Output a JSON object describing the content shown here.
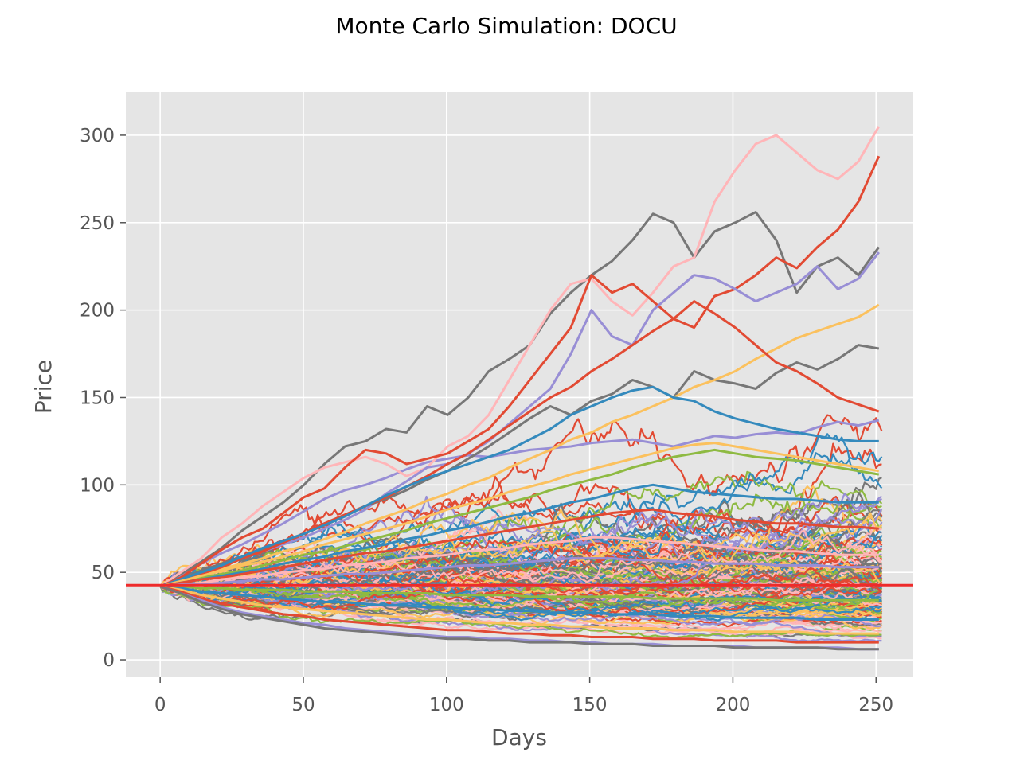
{
  "chart_data": {
    "type": "line",
    "title": "Monte Carlo Simulation: DOCU",
    "xlabel": "Days",
    "ylabel": "Price",
    "xlim": [
      -12,
      263
    ],
    "ylim": [
      -10,
      325
    ],
    "xticks": [
      0,
      50,
      100,
      150,
      200,
      250
    ],
    "yticks": [
      0,
      50,
      100,
      150,
      200,
      250,
      300
    ],
    "grid": true,
    "legend": "none",
    "reference_line": {
      "y": 42.7,
      "color": "#ee2b2b"
    },
    "palette": [
      "#e24a33",
      "#348abd",
      "#988ed5",
      "#777777",
      "#fbc15e",
      "#8eba42",
      "#ffb5b8"
    ],
    "series": [
      {
        "values": [
          42,
          48,
          55,
          61,
          66,
          72,
          78,
          85,
          92,
          97,
          100,
          104,
          109,
          113,
          115,
          117,
          116,
          118,
          120,
          121,
          122,
          124,
          125,
          126,
          124,
          122,
          125,
          128,
          127,
          129,
          130,
          129,
          133,
          136,
          134,
          137
        ],
        "color": "#988ed5"
      },
      {
        "values": [
          42,
          49,
          56,
          64,
          74,
          82,
          90,
          100,
          112,
          122,
          125,
          132,
          130,
          145,
          140,
          150,
          165,
          172,
          180,
          198,
          210,
          220,
          228,
          240,
          255,
          250,
          230,
          245,
          250,
          256,
          240,
          210,
          225,
          230,
          220,
          236
        ],
        "color": "#777777"
      },
      {
        "values": [
          42,
          50,
          58,
          70,
          78,
          88,
          96,
          104,
          110,
          113,
          116,
          112,
          105,
          110,
          122,
          128,
          140,
          160,
          180,
          200,
          215,
          218,
          205,
          197,
          210,
          225,
          230,
          262,
          280,
          295,
          300,
          290,
          280,
          275,
          285,
          305
        ],
        "color": "#ffb5b8"
      },
      {
        "values": [
          42,
          47,
          55,
          63,
          70,
          75,
          84,
          93,
          98,
          110,
          120,
          118,
          112,
          115,
          118,
          125,
          132,
          145,
          160,
          175,
          190,
          220,
          210,
          215,
          205,
          195,
          190,
          208,
          212,
          220,
          230,
          224,
          236,
          246,
          262,
          288
        ],
        "color": "#e24a33"
      },
      {
        "values": [
          42,
          46,
          50,
          55,
          58,
          62,
          66,
          70,
          75,
          80,
          86,
          95,
          102,
          110,
          112,
          118,
          125,
          135,
          145,
          155,
          175,
          200,
          185,
          180,
          200,
          210,
          220,
          218,
          212,
          205,
          210,
          215,
          225,
          212,
          218,
          233
        ],
        "color": "#988ed5"
      },
      {
        "values": [
          42,
          46,
          51,
          55,
          59,
          63,
          68,
          72,
          78,
          83,
          88,
          92,
          97,
          103,
          108,
          115,
          122,
          130,
          138,
          145,
          140,
          148,
          152,
          160,
          156,
          150,
          165,
          160,
          158,
          155,
          164,
          170,
          166,
          172,
          180,
          178
        ],
        "color": "#777777"
      },
      {
        "values": [
          42,
          45,
          49,
          52,
          55,
          58,
          62,
          65,
          69,
          73,
          78,
          82,
          86,
          91,
          95,
          100,
          104,
          110,
          115,
          120,
          126,
          130,
          136,
          140,
          145,
          150,
          156,
          160,
          165,
          172,
          178,
          184,
          188,
          192,
          196,
          203
        ],
        "color": "#fbc15e"
      },
      {
        "values": [
          42,
          45,
          49,
          53,
          58,
          62,
          67,
          72,
          78,
          83,
          88,
          93,
          99,
          105,
          112,
          118,
          126,
          134,
          142,
          150,
          156,
          165,
          172,
          180,
          188,
          195,
          205,
          198,
          190,
          180,
          170,
          165,
          158,
          150,
          146,
          142
        ],
        "color": "#e24a33"
      },
      {
        "values": [
          42,
          46,
          50,
          54,
          59,
          64,
          68,
          72,
          77,
          82,
          88,
          94,
          99,
          104,
          108,
          112,
          116,
          120,
          126,
          132,
          140,
          145,
          150,
          154,
          156,
          150,
          148,
          142,
          138,
          135,
          132,
          130,
          128,
          126,
          125,
          125
        ],
        "color": "#348abd"
      },
      {
        "values": [
          42,
          44,
          47,
          49,
          51,
          54,
          57,
          60,
          62,
          65,
          68,
          71,
          74,
          78,
          81,
          84,
          87,
          90,
          93,
          97,
          100,
          103,
          106,
          110,
          113,
          116,
          118,
          120,
          118,
          116,
          115,
          114,
          112,
          110,
          108,
          106
        ],
        "color": "#8eba42"
      },
      {
        "values": [
          42,
          45,
          48,
          51,
          54,
          56,
          59,
          62,
          66,
          69,
          72,
          75,
          78,
          82,
          86,
          89,
          92,
          96,
          99,
          102,
          106,
          109,
          112,
          115,
          118,
          121,
          123,
          124,
          122,
          120,
          118,
          116,
          114,
          112,
          110,
          108
        ],
        "color": "#fbc15e"
      },
      {
        "values": [
          42,
          44,
          46,
          48,
          50,
          52,
          55,
          57,
          59,
          62,
          64,
          66,
          69,
          71,
          74,
          76,
          79,
          82,
          84,
          87,
          90,
          92,
          95,
          98,
          100,
          98,
          96,
          95,
          94,
          93,
          92,
          92,
          91,
          90,
          90,
          90
        ],
        "color": "#348abd"
      },
      {
        "values": [
          42,
          44,
          46,
          47,
          49,
          51,
          53,
          55,
          57,
          59,
          61,
          62,
          64,
          66,
          68,
          70,
          72,
          74,
          76,
          78,
          80,
          82,
          84,
          85,
          86,
          84,
          83,
          82,
          80,
          79,
          78,
          78,
          77,
          76,
          76,
          75
        ],
        "color": "#e24a33"
      },
      {
        "values": [
          42,
          43,
          44,
          46,
          47,
          48,
          50,
          51,
          52,
          54,
          55,
          56,
          58,
          59,
          60,
          62,
          63,
          64,
          66,
          67,
          68,
          70,
          70,
          69,
          68,
          67,
          66,
          65,
          64,
          63,
          62,
          62,
          61,
          60,
          60,
          60
        ],
        "color": "#ffb5b8"
      },
      {
        "values": [
          42,
          43,
          43,
          44,
          45,
          46,
          46,
          47,
          48,
          49,
          49,
          50,
          51,
          52,
          53,
          54,
          54,
          55,
          56,
          57,
          58,
          58,
          58,
          57,
          57,
          56,
          56,
          55,
          55,
          55,
          54,
          54,
          54,
          53,
          53,
          53
        ],
        "color": "#988ed5"
      },
      {
        "values": [
          42,
          42,
          41,
          41,
          40,
          40,
          40,
          39,
          39,
          39,
          38,
          38,
          38,
          38,
          37,
          37,
          37,
          37,
          36,
          36,
          36,
          36,
          36,
          36,
          35,
          35,
          35,
          35,
          35,
          35,
          34,
          34,
          34,
          34,
          34,
          34
        ],
        "color": "#8eba42"
      },
      {
        "values": [
          42,
          41,
          39,
          38,
          37,
          36,
          35,
          34,
          33,
          33,
          32,
          31,
          31,
          30,
          30,
          29,
          29,
          28,
          28,
          27,
          27,
          27,
          26,
          26,
          26,
          25,
          25,
          25,
          24,
          24,
          24,
          24,
          23,
          23,
          23,
          23
        ],
        "color": "#348abd"
      },
      {
        "values": [
          42,
          40,
          37,
          35,
          33,
          31,
          30,
          29,
          28,
          27,
          26,
          25,
          24,
          23,
          23,
          22,
          21,
          21,
          20,
          20,
          19,
          19,
          18,
          18,
          18,
          17,
          17,
          17,
          16,
          16,
          16,
          16,
          15,
          15,
          15,
          15
        ],
        "color": "#fbc15e"
      },
      {
        "values": [
          42,
          39,
          35,
          32,
          30,
          28,
          26,
          25,
          23,
          22,
          21,
          20,
          19,
          18,
          17,
          17,
          16,
          15,
          15,
          14,
          14,
          13,
          13,
          13,
          12,
          12,
          12,
          11,
          11,
          11,
          11,
          10,
          10,
          10,
          10,
          10
        ],
        "color": "#e24a33"
      },
      {
        "values": [
          42,
          38,
          34,
          30,
          27,
          25,
          23,
          21,
          20,
          18,
          17,
          16,
          15,
          14,
          13,
          13,
          12,
          12,
          11,
          11,
          10,
          10,
          9,
          9,
          9,
          8,
          8,
          8,
          8,
          7,
          7,
          7,
          7,
          7,
          6,
          6
        ],
        "color": "#988ed5"
      },
      {
        "values": [
          42,
          38,
          33,
          29,
          26,
          24,
          22,
          20,
          18,
          17,
          16,
          15,
          14,
          13,
          12,
          12,
          11,
          11,
          10,
          10,
          10,
          9,
          9,
          9,
          8,
          8,
          8,
          8,
          7,
          7,
          7,
          7,
          7,
          6,
          6,
          6
        ],
        "color": "#777777"
      }
    ]
  }
}
